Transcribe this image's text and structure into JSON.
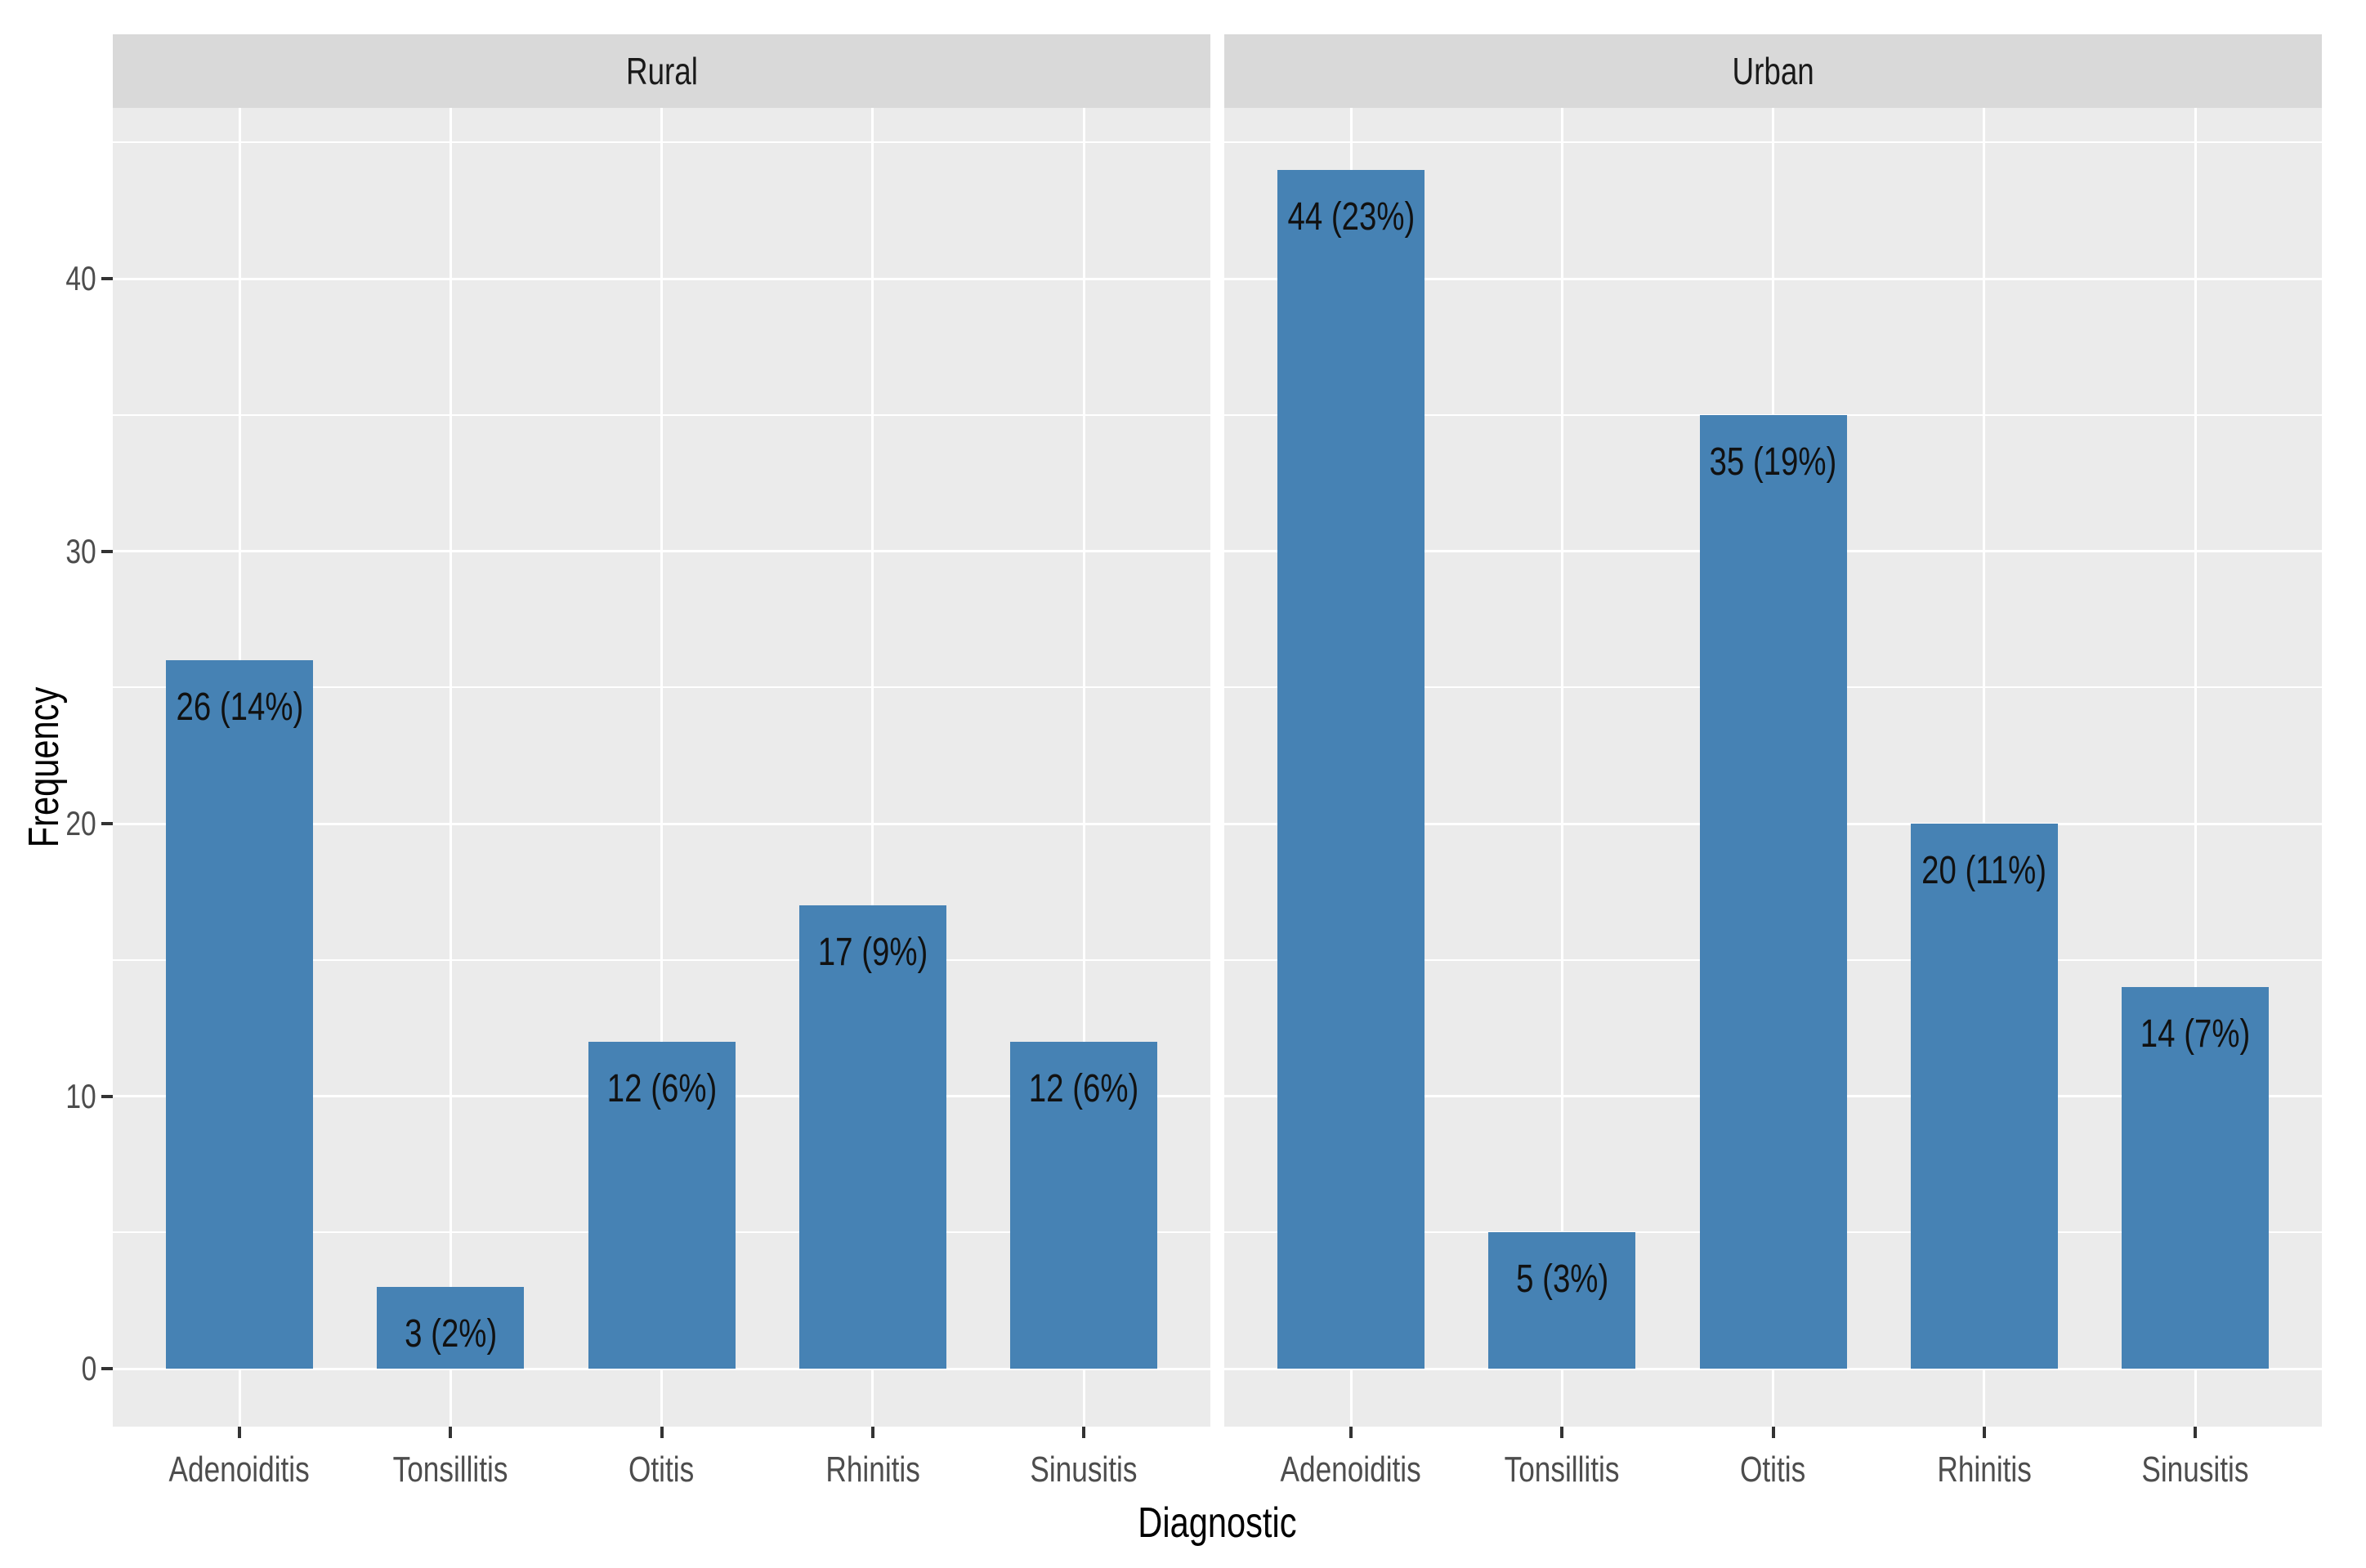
{
  "chart_data": {
    "type": "bar",
    "title": "",
    "xlabel": "Diagnostic",
    "ylabel": "Frequency",
    "categories": [
      "Adenoiditis",
      "Tonsillitis",
      "Otitis",
      "Rhinitis",
      "Sinusitis"
    ],
    "facets": [
      {
        "label": "Rural",
        "values": [
          26,
          3,
          12,
          17,
          12
        ],
        "bar_labels": [
          "26 (14%)",
          "3 (2%)",
          "12 (6%)",
          "17 (9%)",
          "12 (6%)"
        ]
      },
      {
        "label": "Urban",
        "values": [
          44,
          5,
          35,
          20,
          14
        ],
        "bar_labels": [
          "44 (23%)",
          "5 (3%)",
          "35 (19%)",
          "20 (11%)",
          "14 (7%)"
        ]
      }
    ],
    "y_ticks": [
      0,
      10,
      20,
      30,
      40
    ],
    "y_minor_ticks": [
      5,
      15,
      25,
      35,
      45
    ],
    "ylim": [
      -2.2,
      46.3
    ],
    "grid": true,
    "legend": "none",
    "colors": {
      "bar": "#4682b4",
      "panel_bg": "#ebebeb",
      "strip_bg": "#d9d9d9",
      "grid": "#ffffff",
      "tick_text": "#4d4d4d",
      "axis_title_text": "#000000",
      "strip_text": "#1a1a1a",
      "bar_label_text": "#111111",
      "tick_mark": "#333333"
    }
  }
}
